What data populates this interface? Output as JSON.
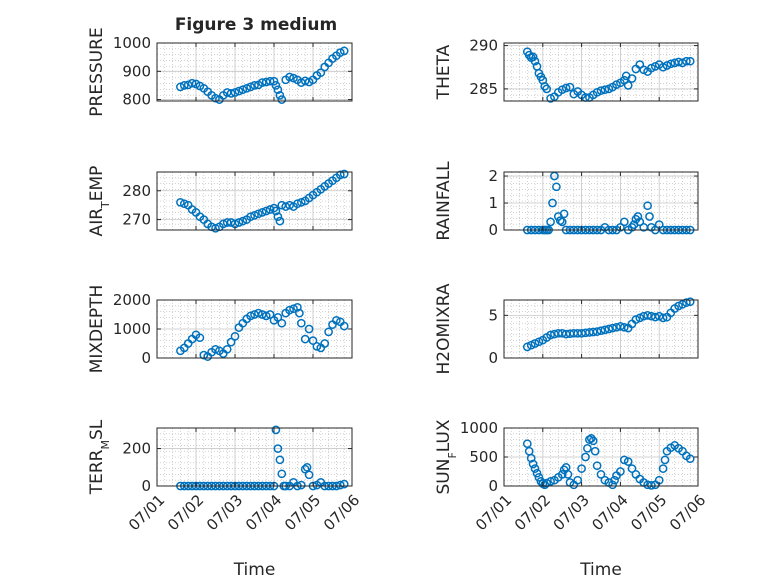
{
  "figure": {
    "title": "Figure 3 medium"
  },
  "colors": {
    "marker": "#0072BD",
    "axis": "#262626",
    "grid": "#b5b5b5",
    "background": "#ffffff"
  },
  "chart_data": [
    {
      "type": "scatter",
      "name": "pressure",
      "ylabel": "PRESSURE",
      "xlabel": "",
      "ylim": [
        795,
        1000
      ],
      "yticks": [
        {
          "v": 800,
          "label": "800"
        },
        {
          "v": 900,
          "label": "900"
        },
        {
          "v": 1000,
          "label": "1000"
        }
      ],
      "xlim": [
        1,
        6
      ],
      "xticks": [],
      "grid": true,
      "x": [
        1.6,
        1.7,
        1.8,
        1.9,
        2.0,
        2.1,
        2.2,
        2.3,
        2.4,
        2.5,
        2.6,
        2.7,
        2.8,
        2.9,
        3.0,
        3.1,
        3.2,
        3.3,
        3.4,
        3.5,
        3.6,
        3.7,
        3.8,
        3.9,
        4.0,
        4.05,
        4.1,
        4.15,
        4.2,
        4.3,
        4.4,
        4.5,
        4.6,
        4.7,
        4.8,
        4.9,
        5.0,
        5.1,
        5.2,
        5.3,
        5.4,
        5.5,
        5.6,
        5.7,
        5.8
      ],
      "y": [
        845,
        850,
        852,
        858,
        855,
        848,
        840,
        828,
        815,
        805,
        800,
        815,
        825,
        822,
        825,
        830,
        835,
        840,
        845,
        850,
        852,
        860,
        862,
        865,
        865,
        850,
        835,
        815,
        800,
        870,
        880,
        876,
        870,
        860,
        866,
        862,
        870,
        885,
        895,
        915,
        930,
        945,
        955,
        966,
        972
      ]
    },
    {
      "type": "scatter",
      "name": "theta",
      "ylabel": "THETA",
      "xlabel": "",
      "ylim": [
        283.6,
        290.3
      ],
      "yticks": [
        {
          "v": 285,
          "label": "285"
        },
        {
          "v": 290,
          "label": "290"
        }
      ],
      "xlim": [
        1,
        6
      ],
      "xticks": [],
      "grid": true,
      "x": [
        1.6,
        1.65,
        1.7,
        1.75,
        1.8,
        1.85,
        1.9,
        1.95,
        2.0,
        2.05,
        2.1,
        2.2,
        2.3,
        2.4,
        2.5,
        2.6,
        2.7,
        2.8,
        2.9,
        3.0,
        3.1,
        3.2,
        3.3,
        3.4,
        3.5,
        3.6,
        3.7,
        3.8,
        3.9,
        4.0,
        4.1,
        4.15,
        4.2,
        4.3,
        4.4,
        4.5,
        4.6,
        4.7,
        4.8,
        4.9,
        5.0,
        5.1,
        5.2,
        5.3,
        5.4,
        5.5,
        5.6,
        5.7,
        5.8
      ],
      "y": [
        289.3,
        288.9,
        288.6,
        288.7,
        288.2,
        287.6,
        286.8,
        286.4,
        286.0,
        285.3,
        285.0,
        283.9,
        284.1,
        284.6,
        284.9,
        285.1,
        285.2,
        284.4,
        284.7,
        284.3,
        284.0,
        284.0,
        284.3,
        284.6,
        284.8,
        284.9,
        285.0,
        285.2,
        285.5,
        285.7,
        286.0,
        286.5,
        285.4,
        286.2,
        287.3,
        287.8,
        287.2,
        287.0,
        287.4,
        287.6,
        287.8,
        287.5,
        287.7,
        287.9,
        288.0,
        288.1,
        288.0,
        288.2,
        288.2
      ]
    },
    {
      "type": "scatter",
      "name": "air-temp",
      "ylabel": "AIR_TEMP",
      "xlabel": "",
      "ylim": [
        266.4,
        286.5
      ],
      "yticks": [
        {
          "v": 270,
          "label": "270"
        },
        {
          "v": 280,
          "label": "280"
        }
      ],
      "xlim": [
        1,
        6
      ],
      "xticks": [],
      "grid": true,
      "x": [
        1.6,
        1.7,
        1.8,
        1.9,
        2.0,
        2.1,
        2.2,
        2.3,
        2.4,
        2.5,
        2.6,
        2.7,
        2.8,
        2.9,
        3.0,
        3.1,
        3.2,
        3.3,
        3.4,
        3.5,
        3.6,
        3.7,
        3.8,
        3.9,
        4.0,
        4.05,
        4.1,
        4.15,
        4.2,
        4.3,
        4.4,
        4.5,
        4.6,
        4.7,
        4.8,
        4.9,
        5.0,
        5.1,
        5.2,
        5.3,
        5.4,
        5.5,
        5.6,
        5.7,
        5.8
      ],
      "y": [
        276,
        275.5,
        275,
        273.5,
        272.5,
        271,
        270,
        268.5,
        267.5,
        267,
        267.5,
        268.5,
        269,
        269,
        268.5,
        269,
        269.5,
        270,
        271,
        271.5,
        272,
        272.5,
        273,
        273.5,
        274,
        273,
        271,
        269.5,
        275,
        274.5,
        275,
        274.5,
        275.5,
        276,
        276.5,
        277.5,
        278.5,
        279.5,
        280.5,
        281.5,
        282.5,
        283.5,
        284.5,
        285.5,
        285.8
      ]
    },
    {
      "type": "scatter",
      "name": "rainfall",
      "ylabel": "RAINFALL",
      "xlabel": "",
      "ylim": [
        0,
        2.15
      ],
      "yticks": [
        {
          "v": 0,
          "label": "0"
        },
        {
          "v": 1,
          "label": "1"
        },
        {
          "v": 2,
          "label": "2"
        }
      ],
      "xlim": [
        1,
        6
      ],
      "xticks": [],
      "grid": true,
      "x": [
        1.6,
        1.7,
        1.8,
        1.9,
        2.0,
        2.05,
        2.1,
        2.15,
        2.2,
        2.25,
        2.3,
        2.35,
        2.4,
        2.45,
        2.5,
        2.55,
        2.6,
        2.7,
        2.8,
        2.9,
        3.0,
        3.1,
        3.2,
        3.3,
        3.4,
        3.5,
        3.6,
        3.7,
        3.8,
        3.9,
        4.0,
        4.1,
        4.2,
        4.3,
        4.35,
        4.4,
        4.45,
        4.5,
        4.6,
        4.7,
        4.75,
        4.8,
        4.9,
        5.0,
        5.1,
        5.2,
        5.3,
        5.4,
        5.5,
        5.6,
        5.7,
        5.8
      ],
      "y": [
        0,
        0,
        0,
        0,
        0,
        0,
        0,
        0,
        0.3,
        1.0,
        2.0,
        1.6,
        0.5,
        0.35,
        0.3,
        0.6,
        0,
        0,
        0,
        0,
        0,
        0,
        0,
        0,
        0,
        0,
        0.1,
        0,
        0,
        0,
        0.1,
        0.3,
        0,
        0.1,
        0.2,
        0.4,
        0.5,
        0.3,
        0.1,
        0.9,
        0.5,
        0.1,
        0,
        0.2,
        0,
        0,
        0,
        0,
        0,
        0,
        0,
        0
      ]
    },
    {
      "type": "scatter",
      "name": "mixdepth",
      "ylabel": "MIXDEPTH",
      "xlabel": "",
      "ylim": [
        0,
        2000
      ],
      "yticks": [
        {
          "v": 0,
          "label": "0"
        },
        {
          "v": 1000,
          "label": "1000"
        },
        {
          "v": 2000,
          "label": "2000"
        }
      ],
      "xlim": [
        1,
        6
      ],
      "xticks": [],
      "grid": true,
      "x": [
        1.6,
        1.7,
        1.8,
        1.9,
        2.0,
        2.1,
        2.2,
        2.3,
        2.4,
        2.5,
        2.6,
        2.7,
        2.8,
        2.9,
        3.0,
        3.1,
        3.2,
        3.3,
        3.4,
        3.5,
        3.6,
        3.7,
        3.8,
        3.9,
        4.0,
        4.1,
        4.2,
        4.3,
        4.4,
        4.5,
        4.6,
        4.65,
        4.7,
        4.8,
        4.9,
        5.0,
        5.1,
        5.2,
        5.3,
        5.4,
        5.5,
        5.6,
        5.7,
        5.8
      ],
      "y": [
        250,
        350,
        500,
        650,
        800,
        700,
        100,
        50,
        200,
        300,
        250,
        150,
        300,
        550,
        750,
        1050,
        1200,
        1350,
        1450,
        1500,
        1550,
        1500,
        1450,
        1500,
        1300,
        1400,
        1200,
        1550,
        1650,
        1700,
        1750,
        1550,
        1200,
        650,
        1000,
        600,
        400,
        350,
        500,
        900,
        1150,
        1300,
        1250,
        1100
      ]
    },
    {
      "type": "scatter",
      "name": "h2omixra",
      "ylabel": "H2OMIXRA",
      "xlabel": "",
      "ylim": [
        0,
        6.8
      ],
      "yticks": [
        {
          "v": 0,
          "label": "0"
        },
        {
          "v": 5,
          "label": "5"
        }
      ],
      "xlim": [
        1,
        6
      ],
      "xticks": [],
      "grid": true,
      "x": [
        1.6,
        1.7,
        1.8,
        1.9,
        2.0,
        2.1,
        2.2,
        2.3,
        2.4,
        2.5,
        2.6,
        2.7,
        2.8,
        2.9,
        3.0,
        3.1,
        3.2,
        3.3,
        3.4,
        3.5,
        3.6,
        3.7,
        3.8,
        3.9,
        4.0,
        4.1,
        4.2,
        4.3,
        4.4,
        4.5,
        4.6,
        4.7,
        4.8,
        4.9,
        5.0,
        5.1,
        5.2,
        5.3,
        5.4,
        5.5,
        5.6,
        5.7,
        5.8
      ],
      "y": [
        1.3,
        1.5,
        1.7,
        1.9,
        2.1,
        2.4,
        2.7,
        2.8,
        2.9,
        2.9,
        2.8,
        2.85,
        2.9,
        2.9,
        2.9,
        2.95,
        3.0,
        3.05,
        3.1,
        3.2,
        3.3,
        3.4,
        3.5,
        3.6,
        3.7,
        3.6,
        3.5,
        4.0,
        4.5,
        4.7,
        4.9,
        5.0,
        4.9,
        4.8,
        4.9,
        4.7,
        4.8,
        5.3,
        5.8,
        6.1,
        6.3,
        6.5,
        6.6
      ]
    },
    {
      "type": "scatter",
      "name": "terr-msl",
      "ylabel": "TERR_MSL",
      "xlabel": "Time",
      "ylim": [
        0,
        310
      ],
      "yticks": [
        {
          "v": 0,
          "label": "0"
        },
        {
          "v": 200,
          "label": "200"
        }
      ],
      "xlim": [
        1,
        6
      ],
      "xticks": [
        {
          "v": 1,
          "label": "07/01"
        },
        {
          "v": 2,
          "label": "07/02"
        },
        {
          "v": 3,
          "label": "07/03"
        },
        {
          "v": 4,
          "label": "07/04"
        },
        {
          "v": 5,
          "label": "07/05"
        },
        {
          "v": 6,
          "label": "07/06"
        }
      ],
      "grid": true,
      "x": [
        1.6,
        1.7,
        1.8,
        1.9,
        2.0,
        2.1,
        2.2,
        2.3,
        2.4,
        2.5,
        2.6,
        2.7,
        2.8,
        2.9,
        3.0,
        3.1,
        3.2,
        3.3,
        3.4,
        3.5,
        3.6,
        3.7,
        3.8,
        3.9,
        4.0,
        4.05,
        4.1,
        4.15,
        4.2,
        4.25,
        4.3,
        4.4,
        4.5,
        4.6,
        4.7,
        4.8,
        4.85,
        4.9,
        5.0,
        5.1,
        5.2,
        5.3,
        5.4,
        5.5,
        5.6,
        5.7,
        5.8
      ],
      "y": [
        0,
        0,
        0,
        0,
        0,
        0,
        0,
        0,
        0,
        0,
        0,
        0,
        0,
        0,
        0,
        0,
        0,
        0,
        0,
        0,
        0,
        0,
        0,
        0,
        0,
        300,
        200,
        140,
        65,
        0,
        0,
        0,
        20,
        0,
        5,
        90,
        100,
        60,
        0,
        5,
        20,
        0,
        0,
        0,
        0,
        5,
        10
      ]
    },
    {
      "type": "scatter",
      "name": "sun-flux",
      "ylabel": "SUN_FLUX",
      "xlabel": "Time",
      "ylim": [
        0,
        1000
      ],
      "yticks": [
        {
          "v": 0,
          "label": "0"
        },
        {
          "v": 500,
          "label": "500"
        },
        {
          "v": 1000,
          "label": "1000"
        }
      ],
      "xlim": [
        1,
        6
      ],
      "xticks": [
        {
          "v": 1,
          "label": "07/01"
        },
        {
          "v": 2,
          "label": "07/02"
        },
        {
          "v": 3,
          "label": "07/03"
        },
        {
          "v": 4,
          "label": "07/04"
        },
        {
          "v": 5,
          "label": "07/05"
        },
        {
          "v": 6,
          "label": "07/06"
        }
      ],
      "grid": true,
      "x": [
        1.6,
        1.65,
        1.7,
        1.75,
        1.8,
        1.85,
        1.9,
        1.95,
        2.0,
        2.05,
        2.1,
        2.2,
        2.3,
        2.4,
        2.5,
        2.55,
        2.6,
        2.65,
        2.7,
        2.8,
        2.9,
        3.0,
        3.1,
        3.15,
        3.2,
        3.25,
        3.3,
        3.35,
        3.4,
        3.5,
        3.6,
        3.7,
        3.8,
        3.85,
        3.9,
        4.0,
        4.1,
        4.2,
        4.3,
        4.4,
        4.5,
        4.6,
        4.7,
        4.8,
        4.9,
        5.0,
        5.1,
        5.15,
        5.2,
        5.3,
        5.4,
        5.5,
        5.6,
        5.7,
        5.8
      ],
      "y": [
        730,
        600,
        480,
        380,
        300,
        220,
        150,
        80,
        40,
        20,
        50,
        80,
        100,
        150,
        200,
        280,
        320,
        200,
        60,
        20,
        100,
        300,
        500,
        650,
        800,
        820,
        780,
        600,
        350,
        200,
        100,
        60,
        20,
        100,
        180,
        250,
        450,
        420,
        300,
        200,
        120,
        60,
        20,
        10,
        20,
        100,
        300,
        450,
        600,
        660,
        700,
        650,
        600,
        520,
        470
      ]
    }
  ]
}
